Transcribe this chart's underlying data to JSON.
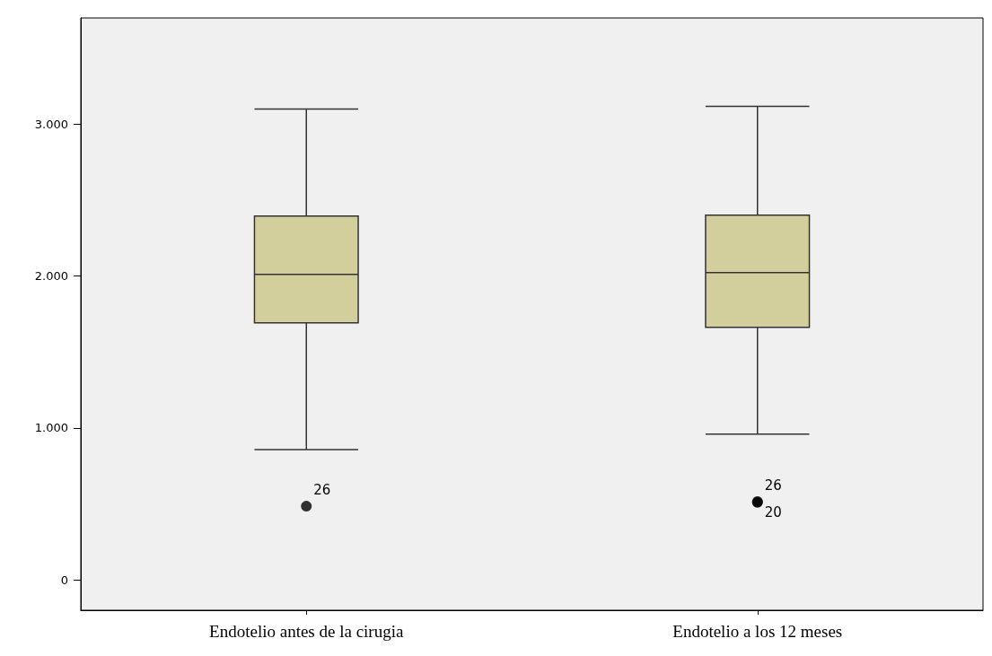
{
  "chart_data": {
    "type": "box",
    "categories": [
      "Endotelio antes de la cirugia",
      "Endotelio a los 12 meses"
    ],
    "boxes": [
      {
        "low": 858,
        "q1": 1692,
        "median": 2012,
        "q3": 2396,
        "high": 3100,
        "outliers": [
          485
        ]
      },
      {
        "low": 959,
        "q1": 1663,
        "median": 2024,
        "q3": 2402,
        "high": 3118,
        "outliers": [
          515,
          510
        ]
      }
    ],
    "color": "#d3cf9c",
    "ylim": [
      -200,
      3700
    ],
    "yticks": [
      {
        "value": 0,
        "label": "0"
      },
      {
        "value": 1000,
        "label": "1.000"
      },
      {
        "value": 2000,
        "label": "2.000"
      },
      {
        "value": 3000,
        "label": "3.000"
      }
    ],
    "grid": false,
    "annotations": [
      "26",
      "26",
      "20"
    ]
  }
}
